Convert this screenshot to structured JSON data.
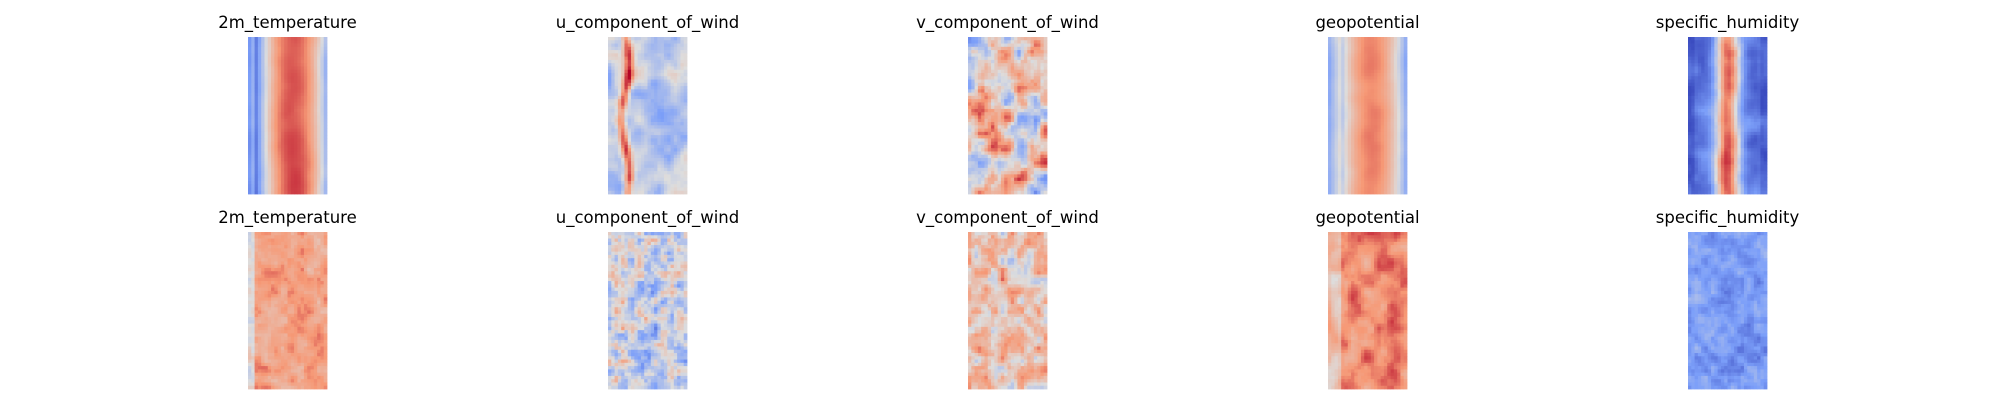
{
  "chart_data": [
    {
      "type": "heatmap",
      "row": 0,
      "col": 0,
      "title": "2m_temperature",
      "colormap": "coolwarm",
      "pattern": "temperature_smooth",
      "axes": "off"
    },
    {
      "type": "heatmap",
      "row": 0,
      "col": 1,
      "title": "u_component_of_wind",
      "colormap": "coolwarm",
      "pattern": "wind_u_smooth",
      "axes": "off"
    },
    {
      "type": "heatmap",
      "row": 0,
      "col": 2,
      "title": "v_component_of_wind",
      "colormap": "coolwarm",
      "pattern": "wind_v_smooth",
      "axes": "off"
    },
    {
      "type": "heatmap",
      "row": 0,
      "col": 3,
      "title": "geopotential",
      "colormap": "coolwarm",
      "pattern": "geopotential_smooth",
      "axes": "off"
    },
    {
      "type": "heatmap",
      "row": 0,
      "col": 4,
      "title": "specific_humidity",
      "colormap": "coolwarm",
      "pattern": "humidity_smooth",
      "axes": "off"
    },
    {
      "type": "heatmap",
      "row": 1,
      "col": 0,
      "title": "2m_temperature",
      "colormap": "coolwarm",
      "pattern": "temperature_noisy",
      "axes": "off"
    },
    {
      "type": "heatmap",
      "row": 1,
      "col": 1,
      "title": "u_component_of_wind",
      "colormap": "coolwarm",
      "pattern": "wind_u_noisy",
      "axes": "off"
    },
    {
      "type": "heatmap",
      "row": 1,
      "col": 2,
      "title": "v_component_of_wind",
      "colormap": "coolwarm",
      "pattern": "wind_v_noisy",
      "axes": "off"
    },
    {
      "type": "heatmap",
      "row": 1,
      "col": 3,
      "title": "geopotential",
      "colormap": "coolwarm",
      "pattern": "geopotential_noisy",
      "axes": "off"
    },
    {
      "type": "heatmap",
      "row": 1,
      "col": 4,
      "title": "specific_humidity",
      "colormap": "coolwarm",
      "pattern": "humidity_noisy",
      "axes": "off"
    }
  ],
  "colors": {
    "background": "#ffffff",
    "coolwarm_low": "#3b4cc0",
    "coolwarm_mid": "#dddddd",
    "coolwarm_high": "#b40426"
  }
}
